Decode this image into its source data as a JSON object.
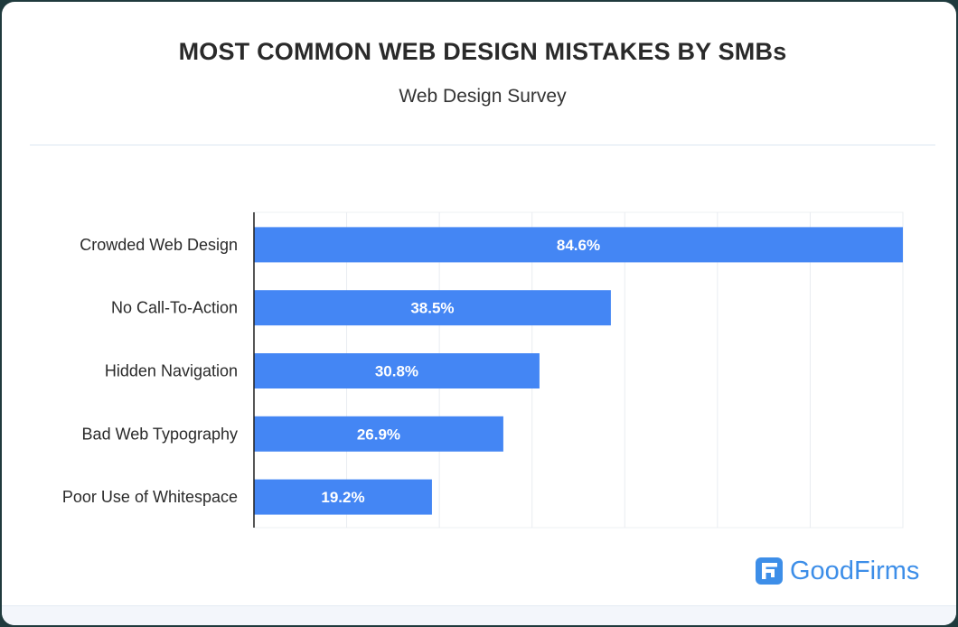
{
  "chart_data": {
    "type": "bar",
    "orientation": "horizontal",
    "title": "MOST COMMON WEB DESIGN MISTAKES BY SMBs",
    "subtitle": "Web Design Survey",
    "categories": [
      "Crowded Web Design",
      "No Call-To-Action",
      "Hidden Navigation",
      "Bad Web Typography",
      "Poor Use of Whitespace"
    ],
    "values": [
      84.6,
      38.5,
      30.8,
      26.9,
      19.2
    ],
    "value_labels": [
      "84.6%",
      "38.5%",
      "30.8%",
      "26.9%",
      "19.2%"
    ],
    "xlim": [
      0,
      70
    ],
    "grid": true,
    "legend": "none",
    "bar_color": "#4486f4"
  },
  "brand": {
    "name": "GoodFirms",
    "color": "#3d8ee8",
    "icon": "goodfirms-logo-icon"
  }
}
